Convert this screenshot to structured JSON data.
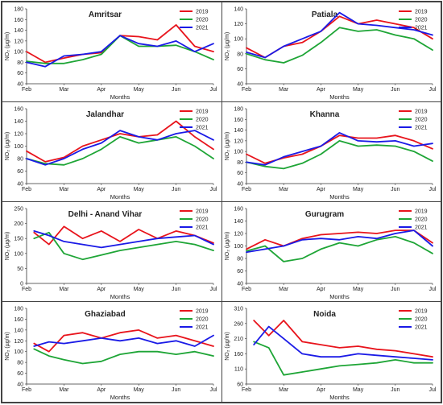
{
  "colors": {
    "y2019": "#e8141c",
    "y2020": "#1ea536",
    "y2021": "#1a1ae6"
  },
  "chart_data": [
    {
      "type": "line",
      "title": "Amritsar",
      "xlabel": "Months",
      "ylabel": "NO₂ (µg/m)",
      "ylim": [
        40,
        180
      ],
      "yticks": [
        40,
        60,
        80,
        100,
        120,
        140,
        160,
        180
      ],
      "xticks": [
        "Feb",
        "Mar",
        "Apr",
        "May",
        "Jun",
        "Jul"
      ],
      "series": [
        {
          "name": "2019",
          "color_key": "y2019",
          "x": [
            0,
            0.5,
            1,
            1.5,
            2,
            2.5,
            3,
            3.5,
            4,
            4.5,
            5
          ],
          "values": [
            100,
            80,
            88,
            95,
            98,
            130,
            128,
            122,
            150,
            110,
            100
          ]
        },
        {
          "name": "2020",
          "color_key": "y2020",
          "x": [
            0,
            0.5,
            1,
            1.5,
            2,
            2.5,
            3,
            3.5,
            4,
            4.5,
            5
          ],
          "values": [
            82,
            78,
            78,
            85,
            95,
            130,
            110,
            110,
            112,
            100,
            85
          ]
        },
        {
          "name": "2021",
          "color_key": "y2021",
          "x": [
            0,
            0.5,
            1,
            1.5,
            2,
            2.5,
            3,
            3.5,
            4,
            4.5,
            5
          ],
          "values": [
            80,
            72,
            92,
            95,
            100,
            130,
            115,
            110,
            120,
            100,
            115
          ]
        }
      ]
    },
    {
      "type": "line",
      "title": "Patiala",
      "xlabel": "Months",
      "ylabel": "NO₂ (µg/m)",
      "ylim": [
        40,
        140
      ],
      "yticks": [
        40,
        60,
        80,
        100,
        120,
        140
      ],
      "xticks": [
        "Feb",
        "Mar",
        "Apr",
        "May",
        "Jun",
        "Jul"
      ],
      "series": [
        {
          "name": "2019",
          "color_key": "y2019",
          "x": [
            0,
            0.5,
            1,
            1.5,
            2,
            2.5,
            3,
            3.5,
            4,
            4.5,
            5
          ],
          "values": [
            88,
            75,
            90,
            95,
            110,
            130,
            120,
            125,
            120,
            115,
            100
          ]
        },
        {
          "name": "2020",
          "color_key": "y2020",
          "x": [
            0,
            0.5,
            1,
            1.5,
            2,
            2.5,
            3,
            3.5,
            4,
            4.5,
            5
          ],
          "values": [
            80,
            72,
            68,
            78,
            95,
            115,
            110,
            112,
            105,
            100,
            85
          ]
        },
        {
          "name": "2021",
          "color_key": "y2021",
          "x": [
            0,
            0.5,
            1,
            1.5,
            2,
            2.5,
            3,
            3.5,
            4,
            4.5,
            5
          ],
          "values": [
            82,
            75,
            90,
            100,
            110,
            135,
            120,
            118,
            115,
            112,
            105
          ]
        }
      ]
    },
    {
      "type": "line",
      "title": "Jalandhar",
      "xlabel": "Months",
      "ylabel": "NO₂ (µg/m)",
      "ylim": [
        40,
        160
      ],
      "yticks": [
        40,
        60,
        80,
        100,
        120,
        140,
        160
      ],
      "xticks": [
        "Feb",
        "Mar",
        "Apr",
        "May",
        "Jun",
        "Jul"
      ],
      "series": [
        {
          "name": "2019",
          "color_key": "y2019",
          "x": [
            0,
            0.5,
            1,
            1.5,
            2,
            2.5,
            3,
            3.5,
            4,
            4.5,
            5
          ],
          "values": [
            92,
            75,
            82,
            100,
            110,
            120,
            115,
            118,
            140,
            115,
            95
          ]
        },
        {
          "name": "2020",
          "color_key": "y2020",
          "x": [
            0,
            0.5,
            1,
            1.5,
            2,
            2.5,
            3,
            3.5,
            4,
            4.5,
            5
          ],
          "values": [
            80,
            72,
            70,
            80,
            95,
            115,
            105,
            110,
            115,
            100,
            80
          ]
        },
        {
          "name": "2021",
          "color_key": "y2021",
          "x": [
            0,
            0.5,
            1,
            1.5,
            2,
            2.5,
            3,
            3.5,
            4,
            4.5,
            5
          ],
          "values": [
            80,
            70,
            80,
            95,
            105,
            125,
            115,
            110,
            120,
            125,
            110
          ]
        }
      ]
    },
    {
      "type": "line",
      "title": "Khanna",
      "xlabel": "Months",
      "ylabel": "NO₂ (µg/m)",
      "ylim": [
        40,
        180
      ],
      "yticks": [
        40,
        60,
        80,
        100,
        120,
        140,
        160,
        180
      ],
      "xticks": [
        "Feb",
        "Mar",
        "Apr",
        "May",
        "Jun",
        "Jul"
      ],
      "series": [
        {
          "name": "2019",
          "color_key": "y2019",
          "x": [
            0,
            0.5,
            1,
            1.5,
            2,
            2.5,
            3,
            3.5,
            4,
            4.5,
            5
          ],
          "values": [
            95,
            78,
            88,
            95,
            110,
            130,
            125,
            125,
            130,
            120,
            105
          ]
        },
        {
          "name": "2020",
          "color_key": "y2020",
          "x": [
            0,
            0.5,
            1,
            1.5,
            2,
            2.5,
            3,
            3.5,
            4,
            4.5,
            5
          ],
          "values": [
            80,
            72,
            68,
            78,
            95,
            120,
            110,
            112,
            110,
            100,
            82
          ]
        },
        {
          "name": "2021",
          "color_key": "y2021",
          "x": [
            0,
            0.5,
            1,
            1.5,
            2,
            2.5,
            3,
            3.5,
            4,
            4.5,
            5
          ],
          "values": [
            80,
            75,
            90,
            100,
            110,
            135,
            120,
            118,
            120,
            110,
            115
          ]
        }
      ]
    },
    {
      "type": "line",
      "title": "Delhi - Anand Vihar",
      "xlabel": "Months",
      "ylabel": "NO₂ (µg/m)",
      "ylim": [
        0,
        250
      ],
      "yticks": [
        0,
        50,
        100,
        150,
        200,
        250
      ],
      "xticks": [
        "Feb",
        "Mar",
        "Apr",
        "May",
        "Jun",
        "Jul"
      ],
      "series": [
        {
          "name": "2019",
          "color_key": "y2019",
          "x": [
            0.2,
            0.6,
            1,
            1.5,
            2,
            2.5,
            3,
            3.5,
            4,
            4.5,
            5
          ],
          "values": [
            170,
            130,
            190,
            150,
            175,
            140,
            180,
            150,
            175,
            160,
            135
          ]
        },
        {
          "name": "2020",
          "color_key": "y2020",
          "x": [
            0.2,
            0.6,
            1,
            1.5,
            2,
            2.5,
            3,
            3.5,
            4,
            4.5,
            5
          ],
          "values": [
            150,
            170,
            100,
            80,
            95,
            110,
            120,
            130,
            140,
            130,
            110
          ]
        },
        {
          "name": "2021",
          "color_key": "y2021",
          "x": [
            0.2,
            0.6,
            1,
            1.5,
            2,
            2.5,
            3,
            3.5,
            4,
            4.5,
            5
          ],
          "values": [
            175,
            160,
            140,
            130,
            120,
            130,
            140,
            150,
            155,
            160,
            130
          ]
        }
      ]
    },
    {
      "type": "line",
      "title": "Gurugram",
      "xlabel": "Months",
      "ylabel": "NO₂ (µg/m)",
      "ylim": [
        40,
        160
      ],
      "yticks": [
        40,
        60,
        80,
        100,
        120,
        140,
        160
      ],
      "xticks": [
        "Feb",
        "Mar",
        "Apr",
        "May",
        "Jun",
        "Jul"
      ],
      "series": [
        {
          "name": "2019",
          "color_key": "y2019",
          "x": [
            0,
            0.5,
            1,
            1.5,
            2,
            2.5,
            3,
            3.5,
            4,
            4.5,
            5
          ],
          "values": [
            95,
            110,
            100,
            112,
            118,
            120,
            122,
            120,
            125,
            125,
            105
          ]
        },
        {
          "name": "2020",
          "color_key": "y2020",
          "x": [
            0,
            0.5,
            1,
            1.5,
            2,
            2.5,
            3,
            3.5,
            4,
            4.5,
            5
          ],
          "values": [
            92,
            100,
            75,
            80,
            95,
            105,
            100,
            110,
            115,
            105,
            88
          ]
        },
        {
          "name": "2021",
          "color_key": "y2021",
          "x": [
            0,
            0.5,
            1,
            1.5,
            2,
            2.5,
            3,
            3.5,
            4,
            4.5,
            5
          ],
          "values": [
            90,
            95,
            100,
            110,
            112,
            110,
            115,
            112,
            120,
            125,
            100
          ]
        }
      ]
    },
    {
      "type": "line",
      "title": "Ghaziabad",
      "xlabel": "Months",
      "ylabel": "NO₂ (µg/m)",
      "ylim": [
        40,
        180
      ],
      "yticks": [
        40,
        60,
        80,
        100,
        120,
        140,
        160,
        180
      ],
      "xticks": [
        "Feb",
        "Mar",
        "Apr",
        "May",
        "Jun",
        "Jul"
      ],
      "series": [
        {
          "name": "2019",
          "color_key": "y2019",
          "x": [
            0.2,
            0.6,
            1,
            1.5,
            2,
            2.5,
            3,
            3.5,
            4,
            4.5,
            5
          ],
          "values": [
            115,
            100,
            130,
            135,
            125,
            135,
            140,
            125,
            130,
            120,
            110
          ]
        },
        {
          "name": "2020",
          "color_key": "y2020",
          "x": [
            0.2,
            0.6,
            1,
            1.5,
            2,
            2.5,
            3,
            3.5,
            4,
            4.5,
            5
          ],
          "values": [
            105,
            92,
            85,
            78,
            82,
            95,
            100,
            100,
            95,
            100,
            92
          ]
        },
        {
          "name": "2021",
          "color_key": "y2021",
          "x": [
            0.2,
            0.6,
            1,
            1.5,
            2,
            2.5,
            3,
            3.5,
            4,
            4.5,
            5
          ],
          "values": [
            110,
            118,
            115,
            120,
            125,
            120,
            125,
            115,
            120,
            110,
            130
          ]
        }
      ]
    },
    {
      "type": "line",
      "title": "Noida",
      "xlabel": "Months",
      "ylabel": "NO₂ (µg/m)",
      "ylim": [
        60,
        310
      ],
      "yticks": [
        60,
        110,
        160,
        210,
        260,
        310
      ],
      "xticks": [
        "Feb",
        "Mar",
        "Apr",
        "May",
        "Jun",
        "Jul"
      ],
      "series": [
        {
          "name": "2019",
          "color_key": "y2019",
          "x": [
            0.2,
            0.6,
            1,
            1.5,
            2,
            2.5,
            3,
            3.5,
            4,
            4.5,
            5
          ],
          "values": [
            270,
            220,
            270,
            200,
            190,
            180,
            185,
            175,
            170,
            160,
            150
          ]
        },
        {
          "name": "2020",
          "color_key": "y2020",
          "x": [
            0.2,
            0.6,
            1,
            1.5,
            2,
            2.5,
            3,
            3.5,
            4,
            4.5,
            5
          ],
          "values": [
            200,
            180,
            90,
            100,
            110,
            120,
            125,
            130,
            140,
            130,
            130
          ]
        },
        {
          "name": "2021",
          "color_key": "y2021",
          "x": [
            0.2,
            0.6,
            1,
            1.5,
            2,
            2.5,
            3,
            3.5,
            4,
            4.5,
            5
          ],
          "values": [
            190,
            250,
            210,
            160,
            150,
            150,
            160,
            155,
            150,
            145,
            140
          ]
        }
      ]
    }
  ]
}
